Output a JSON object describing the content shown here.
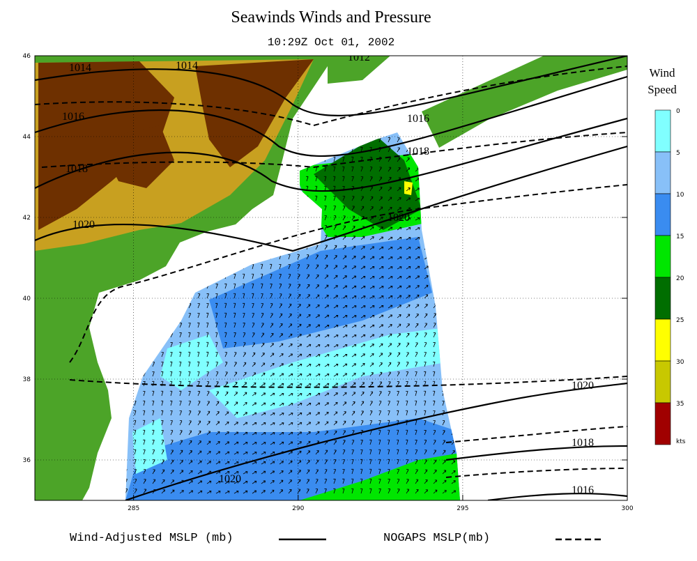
{
  "title": "Seawinds Winds and Pressure",
  "subtitle": "10:29Z Oct 01, 2002",
  "map": {
    "xlim": [
      282,
      300
    ],
    "ylim": [
      35,
      46
    ],
    "xticks": [
      285,
      290,
      295,
      300
    ],
    "yticks": [
      36,
      38,
      40,
      42,
      44,
      46
    ],
    "contour_labels": [
      1014,
      1014,
      1012,
      1016,
      1016,
      1018,
      1018,
      1020,
      1020,
      1020,
      1018,
      1016,
      1020
    ]
  },
  "colorbar": {
    "title": [
      "Wind",
      "Speed"
    ],
    "levels": [
      0,
      5,
      10,
      15,
      20,
      25,
      30,
      35
    ],
    "colors": [
      "#80ffff",
      "#88c0f8",
      "#3a8cf0",
      "#00e600",
      "#006e00",
      "#ffff00",
      "#c8c800",
      "#a00000"
    ],
    "unit": "kts"
  },
  "legend": [
    {
      "name": "Wind-Adjusted MSLP (mb)",
      "style": "solid"
    },
    {
      "name": "NOGAPS MSLP(mb)",
      "style": "dashed"
    }
  ]
}
